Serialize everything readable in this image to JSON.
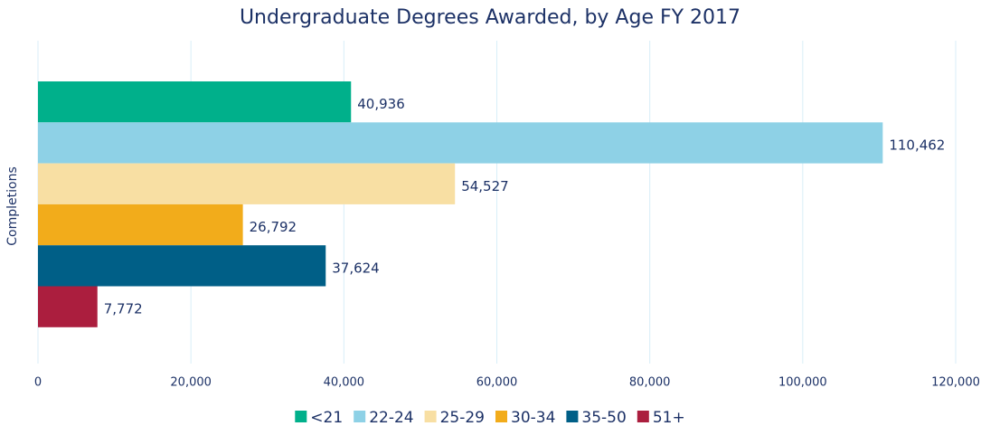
{
  "chart_data": {
    "type": "bar",
    "orientation": "horizontal",
    "title": "Undergraduate Degrees Awarded, by Age FY 2017",
    "y_label": "Completions",
    "categories": [
      "Completions"
    ],
    "series": [
      {
        "name": "<21",
        "color": "#00b08b",
        "values": [
          40936
        ],
        "value_labels": [
          "40,936"
        ]
      },
      {
        "name": "22-24",
        "color": "#8ed1e6",
        "values": [
          110462
        ],
        "value_labels": [
          "110,462"
        ]
      },
      {
        "name": "25-29",
        "color": "#f8dfa3",
        "values": [
          54527
        ],
        "value_labels": [
          "54,527"
        ]
      },
      {
        "name": "30-34",
        "color": "#f2ac1b",
        "values": [
          26792
        ],
        "value_labels": [
          "26,792"
        ]
      },
      {
        "name": "35-50",
        "color": "#005f87",
        "values": [
          37624
        ],
        "value_labels": [
          "37,624"
        ]
      },
      {
        "name": "51+",
        "color": "#ab1e3e",
        "values": [
          7772
        ],
        "value_labels": [
          "7,772"
        ]
      }
    ],
    "xlim": [
      0,
      120000
    ],
    "xticks": [
      0,
      {
        "value": 20000,
        "label": "20,000"
      },
      {
        "value": 40000,
        "label": "40,000"
      },
      {
        "value": 60000,
        "label": "60,000"
      },
      {
        "value": 80000,
        "label": "80,000"
      },
      {
        "value": 100000,
        "label": "100,000"
      },
      {
        "value": 120000,
        "label": "120,000"
      }
    ],
    "grid": true,
    "legend": "bottom"
  }
}
